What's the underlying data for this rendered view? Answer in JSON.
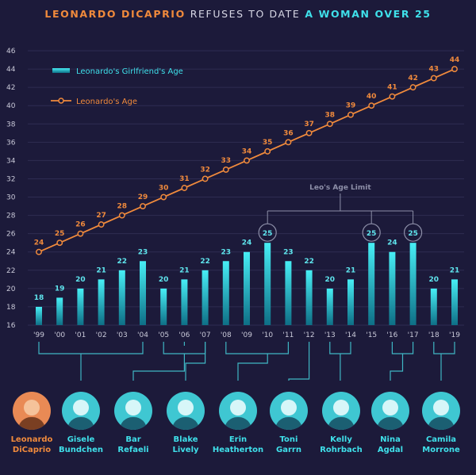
{
  "title": {
    "part1": "LEONARDO DICAPRIO",
    "part2": "REFUSES TO DATE",
    "part3": "A WOMAN OVER 25"
  },
  "colors": {
    "background": "#1c1a3a",
    "orange": "#f08a3c",
    "cyan": "#3fe0ea",
    "grid": "#2e2c52",
    "connector": "#3fb6c4"
  },
  "chart_data": {
    "type": "bar",
    "x": [
      "'99",
      "'00",
      "'01",
      "'02",
      "'03",
      "'04",
      "'05",
      "'06",
      "'07",
      "'08",
      "'09",
      "'10",
      "'11",
      "'12",
      "'13",
      "'14",
      "'15",
      "'16",
      "'17",
      "'18",
      "'19"
    ],
    "ylim": [
      16,
      46
    ],
    "yticks": [
      16,
      18,
      20,
      22,
      24,
      26,
      28,
      30,
      32,
      34,
      36,
      38,
      40,
      42,
      44,
      46
    ],
    "series": [
      {
        "name": "Leonardo's Girlfriend's Age",
        "kind": "bar",
        "values": [
          18,
          19,
          20,
          21,
          22,
          23,
          20,
          21,
          22,
          23,
          24,
          25,
          23,
          22,
          20,
          21,
          25,
          24,
          25,
          20,
          21
        ]
      },
      {
        "name": "Leonardo's Age",
        "kind": "line",
        "values": [
          24,
          25,
          26,
          27,
          28,
          29,
          30,
          31,
          32,
          33,
          34,
          35,
          36,
          37,
          38,
          39,
          40,
          41,
          42,
          43,
          44
        ]
      }
    ],
    "annotation": "Leo's Age Limit",
    "legend_position": "top-left",
    "grid": true
  },
  "people": [
    {
      "name1": "Leonardo",
      "name2": "DiCaprio",
      "color": "orange"
    },
    {
      "name1": "Gisele",
      "name2": "Bundchen",
      "color": "cyan"
    },
    {
      "name1": "Bar",
      "name2": "Refaeli",
      "color": "cyan"
    },
    {
      "name1": "Blake",
      "name2": "Lively",
      "color": "cyan"
    },
    {
      "name1": "Erin",
      "name2": "Heatherton",
      "color": "cyan"
    },
    {
      "name1": "Toni",
      "name2": "Garrn",
      "color": "cyan"
    },
    {
      "name1": "Kelly",
      "name2": "Rohrbach",
      "color": "cyan"
    },
    {
      "name1": "Nina",
      "name2": "Agdal",
      "color": "cyan"
    },
    {
      "name1": "Camila",
      "name2": "Morrone",
      "color": "cyan"
    }
  ]
}
